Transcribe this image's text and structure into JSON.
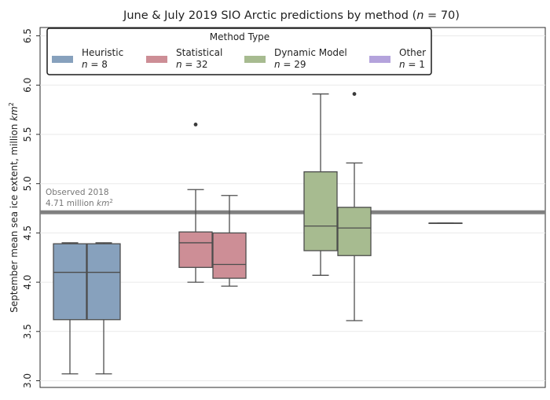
{
  "chart_data": {
    "type": "box",
    "title": "June & July 2019 SIO Arctic predictions by method (",
    "title_n": "n",
    "title_suffix": " = 70)",
    "ylabel": "September mean sea ice extent, million km",
    "ylabel_sup": "2",
    "ylim": [
      3.0,
      6.65
    ],
    "yticks": [
      "3.0",
      "3.5",
      "4.0",
      "4.5",
      "5.0",
      "5.5",
      "6.0",
      "6.5"
    ],
    "ytick_values": [
      3.0,
      3.5,
      4.0,
      4.5,
      5.0,
      5.5,
      6.0,
      6.5
    ],
    "grid": true,
    "legend": {
      "title": "Method Type",
      "placement": "top-left",
      "entries": [
        {
          "label": "Heuristic",
          "n_text": "n = 8",
          "color": "#87a1bd"
        },
        {
          "label": "Statistical",
          "n_text": "n = 32",
          "color": "#cd8e96"
        },
        {
          "label": "Dynamic Model",
          "n_text": "n = 29",
          "color": "#a7bb90"
        },
        {
          "label": "Other",
          "n_text": "n = 1",
          "color": "#b4a3dc"
        }
      ]
    },
    "reference_line": {
      "value": 4.71,
      "label_line1": "Observed 2018",
      "label_line2": "4.71 million km",
      "label_sup": "2",
      "color": "#808080"
    },
    "groups": [
      "Heuristic",
      "Statistical",
      "Dynamic Model",
      "Other"
    ],
    "series": [
      {
        "group": "Heuristic",
        "month": "June",
        "color": "#87a1bd",
        "whisker_low": 3.07,
        "q1": 3.62,
        "median": 4.1,
        "q3": 4.39,
        "whisker_high": 4.4,
        "outliers": []
      },
      {
        "group": "Heuristic",
        "month": "July",
        "color": "#87a1bd",
        "whisker_low": 3.07,
        "q1": 3.62,
        "median": 4.1,
        "q3": 4.39,
        "whisker_high": 4.4,
        "outliers": []
      },
      {
        "group": "Statistical",
        "month": "June",
        "color": "#cd8e96",
        "whisker_low": 4.0,
        "q1": 4.15,
        "median": 4.4,
        "q3": 4.51,
        "whisker_high": 4.94,
        "outliers": [
          5.6
        ]
      },
      {
        "group": "Statistical",
        "month": "July",
        "color": "#cd8e96",
        "whisker_low": 3.96,
        "q1": 4.04,
        "median": 4.18,
        "q3": 4.5,
        "whisker_high": 4.88,
        "outliers": []
      },
      {
        "group": "Dynamic Model",
        "month": "June",
        "color": "#a7bb90",
        "whisker_low": 4.07,
        "q1": 4.32,
        "median": 4.57,
        "q3": 5.12,
        "whisker_high": 5.91,
        "outliers": []
      },
      {
        "group": "Dynamic Model",
        "month": "July",
        "color": "#a7bb90",
        "whisker_low": 3.61,
        "q1": 4.27,
        "median": 4.55,
        "q3": 4.76,
        "whisker_high": 5.21,
        "outliers": [
          5.91
        ]
      },
      {
        "group": "Other",
        "month": "July",
        "color": "#b4a3dc",
        "whisker_low": 4.6,
        "q1": 4.6,
        "median": 4.6,
        "q3": 4.6,
        "whisker_high": 4.6,
        "outliers": []
      }
    ]
  }
}
